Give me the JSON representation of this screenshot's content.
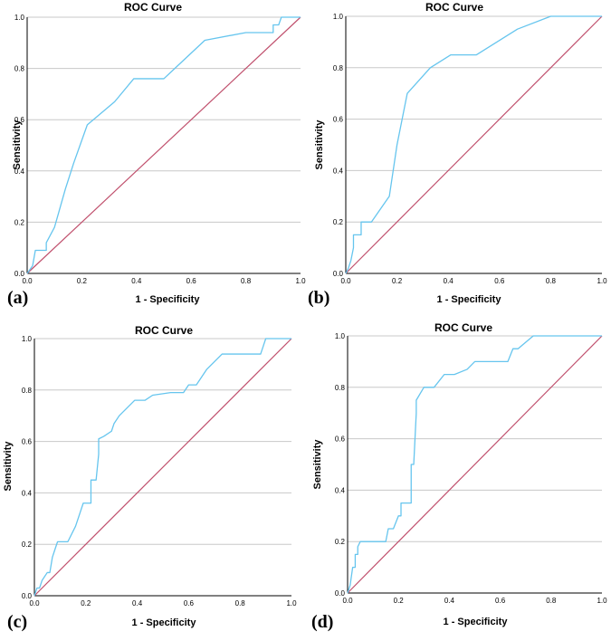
{
  "figure": {
    "panel_letters": [
      "(a)",
      "(b)",
      "(c)",
      "(d)"
    ],
    "colors": {
      "curve": "#66c5ee",
      "reference": "#c0506d",
      "grid": "#c8c8c8",
      "axis": "#000000"
    }
  },
  "chart_data": [
    {
      "type": "line",
      "title": "ROC Curve",
      "xlabel": "1 - Specificity",
      "ylabel": "Sensitivity",
      "xlim": [
        0,
        1
      ],
      "ylim": [
        0,
        1
      ],
      "xticks": [
        "0.0",
        "0.2",
        "0.4",
        "0.6",
        "0.8",
        "1.0"
      ],
      "yticks": [
        "0.0",
        "0.2",
        "0.4",
        "0.6",
        "0.8",
        "1.0"
      ],
      "grid": "horizontal",
      "series": [
        {
          "x": [
            0,
            0.02,
            0.03,
            0.07,
            0.07,
            0.1,
            0.14,
            0.17,
            0.22,
            0.32,
            0.39,
            0.5,
            0.54,
            0.65,
            0.8,
            0.9,
            0.9,
            0.92,
            0.93,
            1.0
          ],
          "y": [
            0,
            0.03,
            0.09,
            0.09,
            0.12,
            0.18,
            0.33,
            0.43,
            0.58,
            0.67,
            0.76,
            0.76,
            0.8,
            0.91,
            0.94,
            0.94,
            0.97,
            0.97,
            1.0,
            1.0
          ]
        },
        {
          "x": [
            0,
            1
          ],
          "y": [
            0,
            1
          ]
        }
      ]
    },
    {
      "type": "line",
      "title": "ROC Curve",
      "xlabel": "1 - Specificity",
      "ylabel": "Sensitivity",
      "xlim": [
        0,
        1
      ],
      "ylim": [
        0,
        1
      ],
      "xticks": [
        "0.0",
        "0.2",
        "0.4",
        "0.6",
        "0.8",
        "1.0"
      ],
      "yticks": [
        "0.0",
        "0.2",
        "0.4",
        "0.6",
        "0.8",
        "1.0"
      ],
      "grid": "horizontal",
      "series": [
        {
          "x": [
            0,
            0.01,
            0.02,
            0.03,
            0.03,
            0.06,
            0.06,
            0.1,
            0.17,
            0.2,
            0.24,
            0.33,
            0.41,
            0.51,
            0.67,
            0.8,
            1.0
          ],
          "y": [
            0,
            0.02,
            0.05,
            0.1,
            0.15,
            0.15,
            0.2,
            0.2,
            0.3,
            0.5,
            0.7,
            0.8,
            0.85,
            0.85,
            0.95,
            1.0,
            1.0
          ]
        },
        {
          "x": [
            0,
            1
          ],
          "y": [
            0,
            1
          ]
        }
      ]
    },
    {
      "type": "line",
      "title": "ROC Curve",
      "xlabel": "1 - Specificity",
      "ylabel": "Sensitivity",
      "xlim": [
        0,
        1
      ],
      "ylim": [
        0,
        1
      ],
      "xticks": [
        "0.0",
        "0.2",
        "0.4",
        "0.6",
        "0.8",
        "1.0"
      ],
      "yticks": [
        "0.0",
        "0.2",
        "0.4",
        "0.6",
        "0.8",
        "1.0"
      ],
      "grid": "horizontal",
      "series": [
        {
          "x": [
            0,
            0.01,
            0.02,
            0.03,
            0.03,
            0.05,
            0.06,
            0.07,
            0.08,
            0.09,
            0.13,
            0.16,
            0.18,
            0.19,
            0.22,
            0.22,
            0.24,
            0.25,
            0.25,
            0.27,
            0.3,
            0.31,
            0.33,
            0.36,
            0.39,
            0.43,
            0.46,
            0.53,
            0.58,
            0.6,
            0.63,
            0.65,
            0.67,
            0.7,
            0.73,
            0.85,
            0.88,
            0.89,
            0.9,
            0.91,
            1.0
          ],
          "y": [
            0,
            0.03,
            0.03,
            0.06,
            0.06,
            0.09,
            0.09,
            0.15,
            0.18,
            0.21,
            0.21,
            0.27,
            0.33,
            0.36,
            0.36,
            0.45,
            0.45,
            0.55,
            0.61,
            0.62,
            0.64,
            0.67,
            0.7,
            0.73,
            0.76,
            0.76,
            0.78,
            0.79,
            0.79,
            0.82,
            0.82,
            0.85,
            0.88,
            0.91,
            0.94,
            0.94,
            0.94,
            0.97,
            1.0,
            1.0,
            1.0
          ]
        },
        {
          "x": [
            0,
            1
          ],
          "y": [
            0,
            1
          ]
        }
      ]
    },
    {
      "type": "line",
      "title": "ROC Curve",
      "xlabel": "1 - Specificity",
      "ylabel": "Sensitivity",
      "xlim": [
        0,
        1
      ],
      "ylim": [
        0,
        1
      ],
      "xticks": [
        "0.0",
        "0.2",
        "0.4",
        "0.6",
        "0.8",
        "1.0"
      ],
      "yticks": [
        "0.0",
        "0.2",
        "0.4",
        "0.6",
        "0.8",
        "1.0"
      ],
      "grid": "horizontal",
      "series": [
        {
          "x": [
            0,
            0.01,
            0.02,
            0.03,
            0.03,
            0.04,
            0.04,
            0.05,
            0.06,
            0.06,
            0.15,
            0.16,
            0.18,
            0.2,
            0.21,
            0.21,
            0.23,
            0.25,
            0.25,
            0.26,
            0.27,
            0.27,
            0.3,
            0.34,
            0.38,
            0.42,
            0.47,
            0.5,
            0.63,
            0.65,
            0.67,
            0.73,
            1.0
          ],
          "y": [
            0,
            0.03,
            0.1,
            0.1,
            0.15,
            0.15,
            0.18,
            0.2,
            0.2,
            0.2,
            0.2,
            0.25,
            0.25,
            0.3,
            0.3,
            0.35,
            0.35,
            0.35,
            0.5,
            0.5,
            0.7,
            0.75,
            0.8,
            0.8,
            0.85,
            0.85,
            0.87,
            0.9,
            0.9,
            0.95,
            0.95,
            1.0,
            1.0
          ]
        },
        {
          "x": [
            0,
            1
          ],
          "y": [
            0,
            1
          ]
        }
      ]
    }
  ]
}
